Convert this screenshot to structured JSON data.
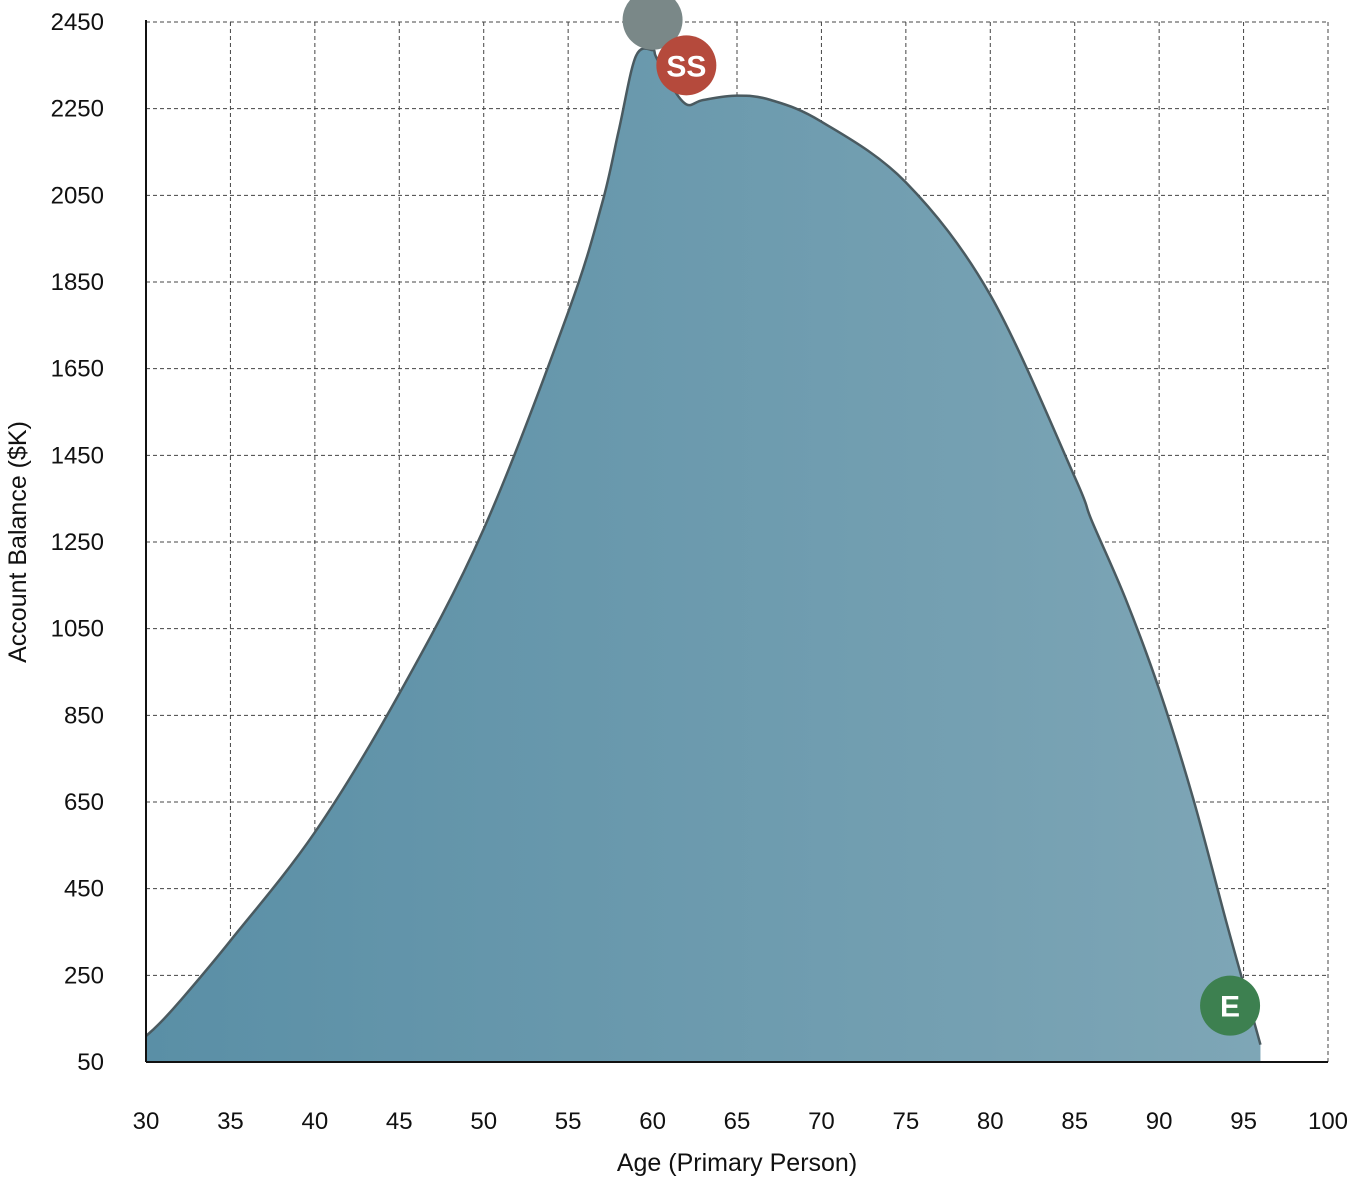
{
  "chart_data": {
    "type": "area",
    "xlabel": "Age (Primary Person)",
    "ylabel": "Account Balance ($K)",
    "xlim": [
      30,
      100
    ],
    "ylim": [
      50,
      2450
    ],
    "x_ticks": [
      30,
      35,
      40,
      45,
      50,
      55,
      60,
      65,
      70,
      75,
      80,
      85,
      90,
      95,
      100
    ],
    "y_ticks": [
      50,
      250,
      450,
      650,
      850,
      1050,
      1250,
      1450,
      1650,
      1850,
      2050,
      2250,
      2450
    ],
    "grid": true,
    "colors": {
      "fill_start": "#5a8fa6",
      "fill_end": "#7ea6b6",
      "line": "#4a5a60"
    },
    "series": [
      {
        "x": [
          30,
          30.7,
          32,
          35,
          40,
          45,
          50,
          55,
          57,
          58,
          59,
          60,
          60.2,
          61,
          62,
          63,
          65,
          67,
          70,
          75,
          80,
          85,
          86,
          88,
          90,
          92,
          94,
          95,
          95.5,
          96
        ],
        "y": [
          110,
          135,
          190,
          330,
          580,
          900,
          1280,
          1780,
          2030,
          2200,
          2370,
          2385,
          2370,
          2310,
          2260,
          2270,
          2280,
          2270,
          2220,
          2080,
          1820,
          1400,
          1300,
          1120,
          910,
          660,
          370,
          230,
          160,
          90
        ]
      }
    ],
    "markers": [
      {
        "label": "",
        "x": 60,
        "y": 2455,
        "color": "#7a8888"
      },
      {
        "label": "SS",
        "x": 62,
        "y": 2350,
        "color": "#b54a3c"
      },
      {
        "label": "E",
        "x": 94.2,
        "y": 180,
        "color": "#3d8050"
      }
    ]
  }
}
